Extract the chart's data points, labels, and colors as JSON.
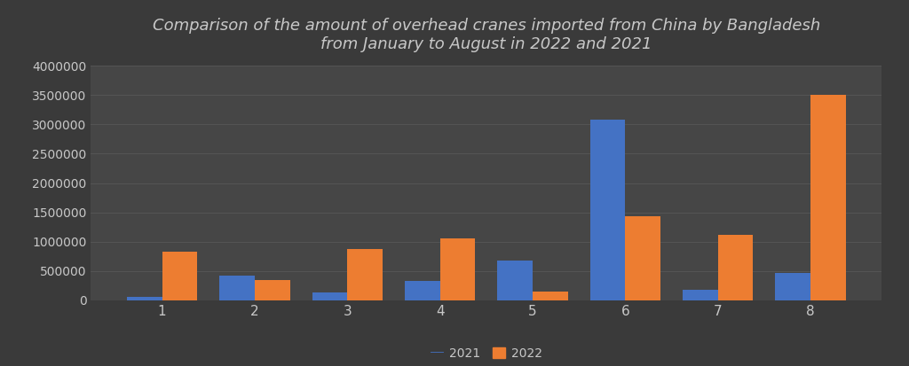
{
  "title": "Comparison of the amount of overhead cranes imported from China by Bangladesh\nfrom January to August in 2022 and 2021",
  "months": [
    1,
    2,
    3,
    4,
    5,
    6,
    7,
    8
  ],
  "values_2021": [
    60000,
    420000,
    130000,
    330000,
    670000,
    3080000,
    180000,
    470000
  ],
  "values_2022": [
    830000,
    350000,
    870000,
    1060000,
    140000,
    1430000,
    1120000,
    3510000
  ],
  "color_2021": "#4472C4",
  "color_2022": "#ED7D31",
  "background_color": "#3a3a3a",
  "axes_background": "#464646",
  "grid_color": "#575757",
  "text_color": "#C8C8C8",
  "title_fontsize": 13,
  "legend_labels": [
    "2021",
    "2022"
  ],
  "ylim": [
    0,
    4000000
  ],
  "yticks": [
    0,
    500000,
    1000000,
    1500000,
    2000000,
    2500000,
    3000000,
    3500000,
    4000000
  ],
  "bar_width": 0.38,
  "legend_bg": "#4a4a4a"
}
